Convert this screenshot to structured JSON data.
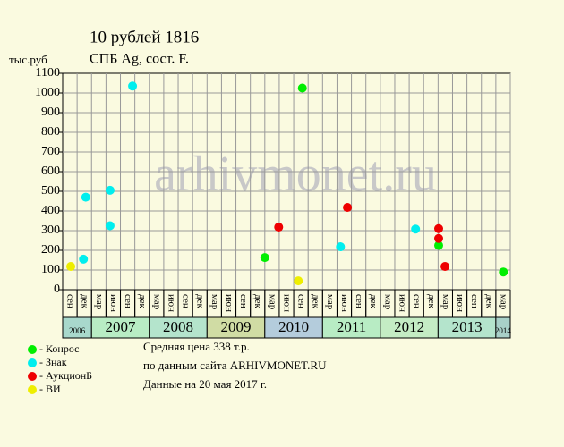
{
  "chart_data": {
    "type": "scatter",
    "title": "10 рублей 1816",
    "subtitle": "СПБ Ag, сост. F.",
    "y_label": "тыс.руб",
    "watermark": "arhivmonet.ru",
    "xlim": [
      2006.5,
      2014.25
    ],
    "ylim": [
      0,
      1100
    ],
    "yticks": [
      0,
      100,
      200,
      300,
      400,
      500,
      600,
      700,
      800,
      900,
      1000,
      1100
    ],
    "grid": true,
    "xticks": [
      {
        "value": 2006.625,
        "label": "сен"
      },
      {
        "value": 2006.875,
        "label": "дек"
      },
      {
        "value": 2007.125,
        "label": "мар"
      },
      {
        "value": 2007.375,
        "label": "июн"
      },
      {
        "value": 2007.625,
        "label": "сен"
      },
      {
        "value": 2007.875,
        "label": "дек"
      },
      {
        "value": 2008.125,
        "label": "мар"
      },
      {
        "value": 2008.375,
        "label": "июн"
      },
      {
        "value": 2008.625,
        "label": "сен"
      },
      {
        "value": 2008.875,
        "label": "дек"
      },
      {
        "value": 2009.125,
        "label": "мар"
      },
      {
        "value": 2009.375,
        "label": "июн"
      },
      {
        "value": 2009.625,
        "label": "сен"
      },
      {
        "value": 2009.875,
        "label": "дек"
      },
      {
        "value": 2010.125,
        "label": "мар"
      },
      {
        "value": 2010.375,
        "label": "июн"
      },
      {
        "value": 2010.625,
        "label": "сен"
      },
      {
        "value": 2010.875,
        "label": "дек"
      },
      {
        "value": 2011.125,
        "label": "мар"
      },
      {
        "value": 2011.375,
        "label": "июн"
      },
      {
        "value": 2011.625,
        "label": "сен"
      },
      {
        "value": 2011.875,
        "label": "дек"
      },
      {
        "value": 2012.125,
        "label": "мар"
      },
      {
        "value": 2012.375,
        "label": "июн"
      },
      {
        "value": 2012.625,
        "label": "сен"
      },
      {
        "value": 2012.875,
        "label": "дек"
      },
      {
        "value": 2013.125,
        "label": "мар"
      },
      {
        "value": 2013.375,
        "label": "июн"
      },
      {
        "value": 2013.625,
        "label": "сен"
      },
      {
        "value": 2013.875,
        "label": "дек"
      },
      {
        "value": 2014.125,
        "label": "мар"
      }
    ],
    "years": [
      {
        "label": "2006",
        "start": 2006.5,
        "end": 2007,
        "color": "#a8d8cc"
      },
      {
        "label": "2007",
        "start": 2007,
        "end": 2008,
        "color": "#b8ecc4"
      },
      {
        "label": "2008",
        "start": 2008,
        "end": 2009,
        "color": "#b4e4cc"
      },
      {
        "label": "2009",
        "start": 2009,
        "end": 2010,
        "color": "#d0dca4"
      },
      {
        "label": "2010",
        "start": 2010,
        "end": 2011,
        "color": "#b4ccdc"
      },
      {
        "label": "2011",
        "start": 2011,
        "end": 2012,
        "color": "#b8ecc4"
      },
      {
        "label": "2012",
        "start": 2012,
        "end": 2013,
        "color": "#c4ecc4"
      },
      {
        "label": "2013",
        "start": 2013,
        "end": 2014,
        "color": "#b4e4cc"
      },
      {
        "label": "2014",
        "start": 2014,
        "end": 2014.25,
        "color": "#a8d0c8"
      }
    ],
    "series": [
      {
        "name": "- Конрос",
        "color": "#00ee00",
        "x": [
          2010.0,
          2010.65,
          2013.01,
          2014.13
        ],
        "values": [
          163,
          1025,
          225,
          90
        ]
      },
      {
        "name": "- Знак",
        "color": "#00eeee",
        "x": [
          2006.86,
          2006.9,
          2007.32,
          2007.32,
          2007.71,
          2011.31,
          2012.61
        ],
        "values": [
          155,
          470,
          325,
          505,
          1035,
          218,
          308
        ]
      },
      {
        "name": "- АукционБ",
        "color": "#ee0000",
        "x": [
          2010.24,
          2011.43,
          2013.01,
          2013.01,
          2013.12
        ],
        "values": [
          318,
          418,
          310,
          260,
          118
        ]
      },
      {
        "name": "- ВИ",
        "color": "#eeee00",
        "x": [
          2006.64,
          2010.58
        ],
        "values": [
          118,
          45
        ]
      }
    ],
    "notes": [
      "Средняя цена 338 т.р.",
      "по данным сайта ARHIVMONET.RU",
      "Данные на 20 мая 2017 г."
    ]
  }
}
